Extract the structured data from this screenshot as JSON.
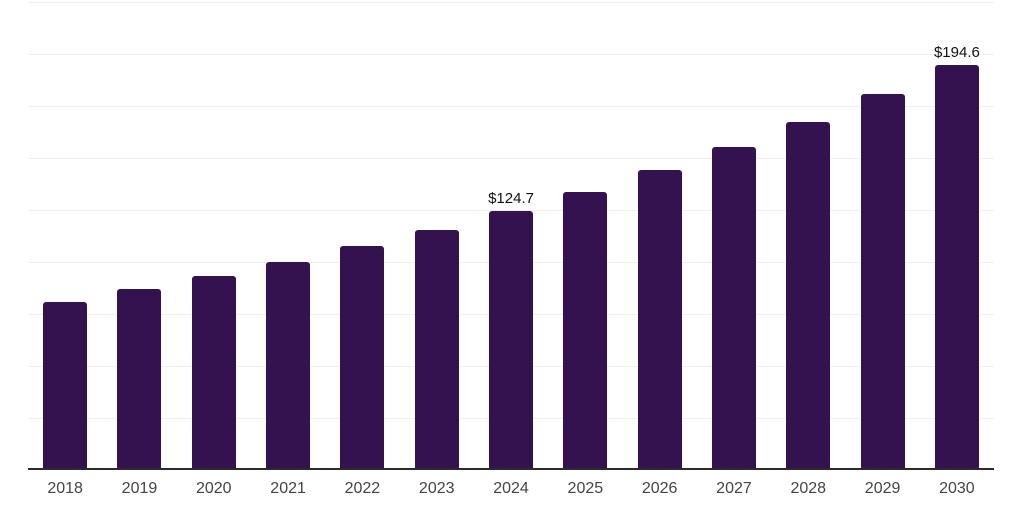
{
  "chart_data": {
    "type": "bar",
    "title": "",
    "categories": [
      "2018",
      "2019",
      "2020",
      "2021",
      "2022",
      "2023",
      "2024",
      "2025",
      "2026",
      "2027",
      "2028",
      "2029",
      "2030"
    ],
    "values": [
      80.6,
      86.8,
      93.1,
      99.8,
      107.8,
      115.6,
      124.7,
      133.9,
      144.4,
      155.4,
      167.4,
      180.7,
      194.6
    ],
    "data_labels": [
      {
        "category": "2024",
        "text": "$124.7"
      },
      {
        "category": "2030",
        "text": "$194.6"
      }
    ],
    "value_prefix": "$",
    "xlabel": "",
    "ylabel": "",
    "ylim": [
      0,
      225
    ],
    "gridline_step": 25,
    "grid": "horizontal",
    "y_axis_tick_labels_visible": false,
    "legend_position": "none",
    "colors": {
      "bar": "#34124f",
      "gridline": "#f0f0f0",
      "axis_line": "#2b2b2b",
      "tick_label": "#444444",
      "value_label": "#111111",
      "background": "#ffffff"
    }
  }
}
